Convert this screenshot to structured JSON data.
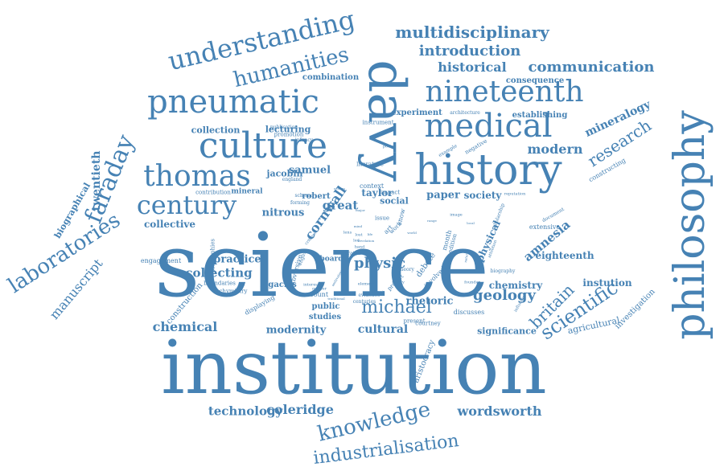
{
  "colors": {
    "word": "#4682b4",
    "background": "#ffffff"
  },
  "words": [
    {
      "text": "science"
    },
    {
      "text": "institution"
    },
    {
      "text": "philosophy"
    },
    {
      "text": "davy"
    },
    {
      "text": "history"
    },
    {
      "text": "culture"
    },
    {
      "text": "pneumatic"
    },
    {
      "text": "medical"
    },
    {
      "text": "nineteenth"
    },
    {
      "text": "understanding"
    },
    {
      "text": "humanities"
    },
    {
      "text": "thomas"
    },
    {
      "text": "century"
    },
    {
      "text": "faraday"
    },
    {
      "text": "laboratories"
    },
    {
      "text": "knowledge"
    },
    {
      "text": "industrialisation"
    },
    {
      "text": "michael"
    },
    {
      "text": "scientific"
    },
    {
      "text": "multidisciplinary"
    },
    {
      "text": "introduction"
    },
    {
      "text": "historical"
    },
    {
      "text": "communication"
    },
    {
      "text": "research"
    },
    {
      "text": "modern"
    },
    {
      "text": "mineralogy"
    },
    {
      "text": "britain"
    },
    {
      "text": "geology"
    },
    {
      "text": "wordsworth"
    },
    {
      "text": "coleridge"
    },
    {
      "text": "technology"
    },
    {
      "text": "chemical"
    },
    {
      "text": "collecting"
    },
    {
      "text": "practice"
    },
    {
      "text": "physic"
    },
    {
      "text": "manuscript"
    },
    {
      "text": "amnesia"
    },
    {
      "text": "cultural"
    },
    {
      "text": "modernity"
    },
    {
      "text": "samuel"
    },
    {
      "text": "cornwall"
    },
    {
      "text": "twentieth"
    },
    {
      "text": "biographical"
    },
    {
      "text": "collective"
    },
    {
      "text": "jacobin"
    },
    {
      "text": "nitrous"
    },
    {
      "text": "great"
    },
    {
      "text": "paper"
    },
    {
      "text": "society"
    },
    {
      "text": "rhetoric"
    },
    {
      "text": "eighteenth"
    },
    {
      "text": "instution"
    },
    {
      "text": "chemistry"
    },
    {
      "text": "physical"
    },
    {
      "text": "agricultural"
    },
    {
      "text": "investigation"
    },
    {
      "text": "significance"
    },
    {
      "text": "aristocracy"
    },
    {
      "text": "construction"
    },
    {
      "text": "studies"
    },
    {
      "text": "public"
    },
    {
      "text": "collection"
    },
    {
      "text": "lecturing"
    },
    {
      "text": "experiment"
    },
    {
      "text": "combination"
    },
    {
      "text": "consequence"
    },
    {
      "text": "establishing"
    },
    {
      "text": "taylor"
    },
    {
      "text": "social"
    },
    {
      "text": "constructing"
    },
    {
      "text": "mineral"
    },
    {
      "text": "debate"
    },
    {
      "text": "legacies"
    },
    {
      "text": "board"
    },
    {
      "text": "engagement"
    },
    {
      "text": "extensive"
    },
    {
      "text": "account"
    },
    {
      "text": "discusses"
    },
    {
      "text": "courtney"
    },
    {
      "text": "robert"
    },
    {
      "text": "subversive"
    },
    {
      "text": "displaying"
    },
    {
      "text": "chymistry"
    },
    {
      "text": "boundaries"
    },
    {
      "text": "biographies"
    },
    {
      "text": "contribution"
    },
    {
      "text": "instrument"
    },
    {
      "text": "promotion"
    },
    {
      "text": "publication"
    },
    {
      "text": "architecture"
    },
    {
      "text": "negative"
    },
    {
      "text": "example"
    },
    {
      "text": "literature"
    },
    {
      "text": "context"
    },
    {
      "text": "impact"
    },
    {
      "text": "present"
    },
    {
      "text": "involved"
    },
    {
      "text": "project"
    },
    {
      "text": "issue"
    },
    {
      "text": "infancy"
    },
    {
      "text": "england"
    },
    {
      "text": "scheme"
    },
    {
      "text": "forming"
    },
    {
      "text": "document"
    },
    {
      "text": "scholarship"
    },
    {
      "text": "biography"
    },
    {
      "text": "reputation"
    },
    {
      "text": "founder"
    },
    {
      "text": "influence"
    },
    {
      "text": "attention"
    },
    {
      "text": "evidence"
    },
    {
      "text": "centuries"
    },
    {
      "text": "interest"
    },
    {
      "text": "element"
    },
    {
      "text": "scratch"
    },
    {
      "text": "english"
    },
    {
      "text": "art"
    },
    {
      "text": "work"
    },
    {
      "text": "family"
    },
    {
      "text": "theory"
    },
    {
      "text": "poetry"
    },
    {
      "text": "month"
    },
    {
      "text": "edition"
    },
    {
      "text": "image"
    },
    {
      "text": "snow"
    },
    {
      "text": "led"
    },
    {
      "text": "lost"
    },
    {
      "text": "hand"
    },
    {
      "text": "lens"
    },
    {
      "text": "gender"
    },
    {
      "text": "critique"
    },
    {
      "text": "ambivalence"
    },
    {
      "text": "revelation"
    },
    {
      "text": "memoir"
    },
    {
      "text": "mind"
    },
    {
      "text": "local"
    },
    {
      "text": "range"
    },
    {
      "text": "world"
    },
    {
      "text": "traditional"
    },
    {
      "text": "life"
    },
    {
      "text": "nature"
    },
    {
      "text": "major"
    },
    {
      "text": "reform"
    }
  ]
}
